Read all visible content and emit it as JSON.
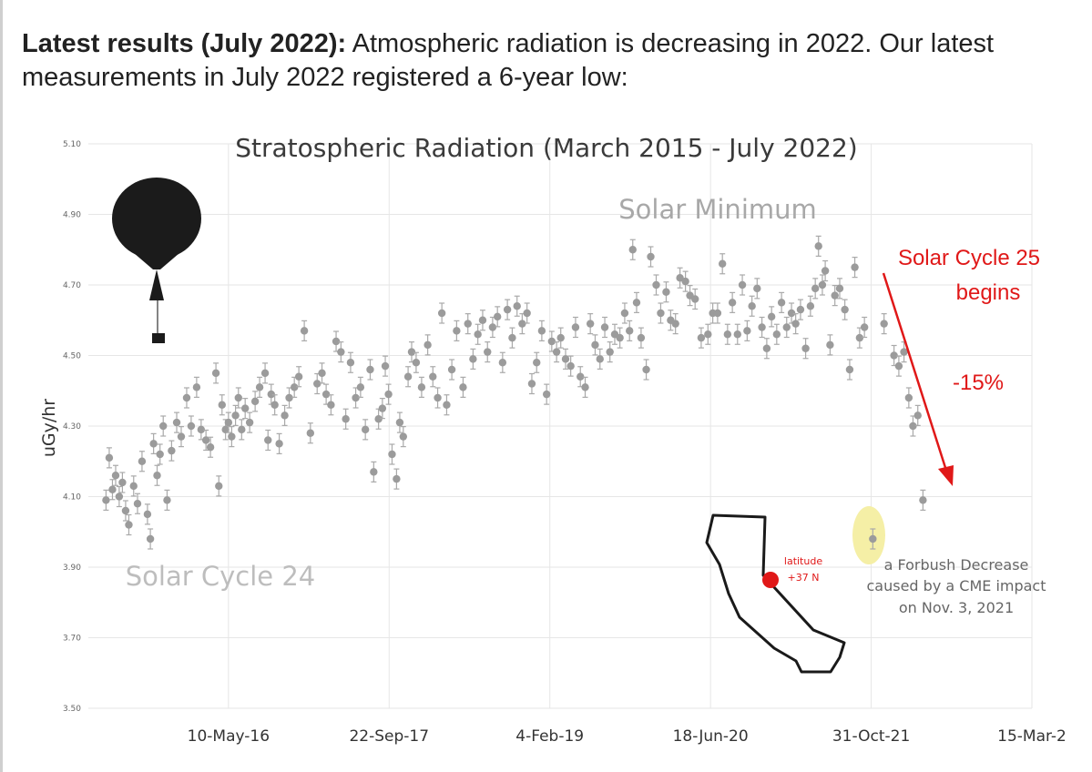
{
  "intro": {
    "bold": "Latest results (July 2022):",
    "text": " Atmospheric radiation is decreasing in 2022. Our latest measurements in July 2022 registered a 6-year low:"
  },
  "chart_data": {
    "type": "scatter",
    "title": "Stratospheric Radiation (March 2015 - July 2022)",
    "ylabel": "uGy/hr",
    "xlabel": "",
    "ylim": [
      3.5,
      5.1
    ],
    "yticks": [
      "5.10",
      "4.90",
      "4.70",
      "4.50",
      "4.30",
      "4.10",
      "3.90",
      "3.70",
      "3.50"
    ],
    "xlim": [
      "2015-03-01",
      "2023-03-15"
    ],
    "xticks": [
      {
        "label": "10-May-16",
        "date": "2016-05-10"
      },
      {
        "label": "22-Sep-17",
        "date": "2017-09-22"
      },
      {
        "label": "4-Feb-19",
        "date": "2019-02-04"
      },
      {
        "label": "18-Jun-20",
        "date": "2020-06-18"
      },
      {
        "label": "31-Oct-21",
        "date": "2021-10-31"
      },
      {
        "label": "15-Mar-2",
        "date": "2023-03-15"
      }
    ],
    "series": [
      {
        "name": "measurements",
        "points": [
          [
            "2015-04-25",
            4.09
          ],
          [
            "2015-05-05",
            4.21
          ],
          [
            "2015-05-15",
            4.12
          ],
          [
            "2015-05-25",
            4.16
          ],
          [
            "2015-06-05",
            4.1
          ],
          [
            "2015-06-15",
            4.14
          ],
          [
            "2015-06-25",
            4.06
          ],
          [
            "2015-07-05",
            4.02
          ],
          [
            "2015-07-20",
            4.13
          ],
          [
            "2015-08-01",
            4.08
          ],
          [
            "2015-08-15",
            4.2
          ],
          [
            "2015-09-01",
            4.05
          ],
          [
            "2015-09-10",
            3.98
          ],
          [
            "2015-09-20",
            4.25
          ],
          [
            "2015-10-01",
            4.16
          ],
          [
            "2015-10-10",
            4.22
          ],
          [
            "2015-10-20",
            4.3
          ],
          [
            "2015-11-01",
            4.09
          ],
          [
            "2015-11-15",
            4.23
          ],
          [
            "2015-12-01",
            4.31
          ],
          [
            "2015-12-15",
            4.27
          ],
          [
            "2016-01-01",
            4.38
          ],
          [
            "2016-01-15",
            4.3
          ],
          [
            "2016-02-01",
            4.41
          ],
          [
            "2016-02-15",
            4.29
          ],
          [
            "2016-03-01",
            4.26
          ],
          [
            "2016-03-15",
            4.24
          ],
          [
            "2016-04-01",
            4.45
          ],
          [
            "2016-04-10",
            4.13
          ],
          [
            "2016-04-20",
            4.36
          ],
          [
            "2016-05-01",
            4.29
          ],
          [
            "2016-05-10",
            4.31
          ],
          [
            "2016-05-20",
            4.27
          ],
          [
            "2016-06-01",
            4.33
          ],
          [
            "2016-06-10",
            4.38
          ],
          [
            "2016-06-20",
            4.29
          ],
          [
            "2016-07-01",
            4.35
          ],
          [
            "2016-07-15",
            4.31
          ],
          [
            "2016-08-01",
            4.37
          ],
          [
            "2016-08-15",
            4.41
          ],
          [
            "2016-09-01",
            4.45
          ],
          [
            "2016-09-10",
            4.26
          ],
          [
            "2016-09-20",
            4.39
          ],
          [
            "2016-10-01",
            4.36
          ],
          [
            "2016-10-15",
            4.25
          ],
          [
            "2016-11-01",
            4.33
          ],
          [
            "2016-11-15",
            4.38
          ],
          [
            "2016-12-01",
            4.41
          ],
          [
            "2016-12-15",
            4.44
          ],
          [
            "2017-01-01",
            4.57
          ],
          [
            "2017-01-20",
            4.28
          ],
          [
            "2017-02-10",
            4.42
          ],
          [
            "2017-02-25",
            4.45
          ],
          [
            "2017-03-10",
            4.39
          ],
          [
            "2017-03-25",
            4.36
          ],
          [
            "2017-04-10",
            4.54
          ],
          [
            "2017-04-25",
            4.51
          ],
          [
            "2017-05-10",
            4.32
          ],
          [
            "2017-05-25",
            4.48
          ],
          [
            "2017-06-10",
            4.38
          ],
          [
            "2017-06-25",
            4.41
          ],
          [
            "2017-07-10",
            4.29
          ],
          [
            "2017-07-25",
            4.46
          ],
          [
            "2017-08-05",
            4.17
          ],
          [
            "2017-08-20",
            4.32
          ],
          [
            "2017-09-01",
            4.35
          ],
          [
            "2017-09-10",
            4.47
          ],
          [
            "2017-09-20",
            4.39
          ],
          [
            "2017-10-01",
            4.22
          ],
          [
            "2017-10-15",
            4.15
          ],
          [
            "2017-10-25",
            4.31
          ],
          [
            "2017-11-05",
            4.27
          ],
          [
            "2017-11-20",
            4.44
          ],
          [
            "2017-12-01",
            4.51
          ],
          [
            "2017-12-15",
            4.48
          ],
          [
            "2018-01-01",
            4.41
          ],
          [
            "2018-01-20",
            4.53
          ],
          [
            "2018-02-05",
            4.44
          ],
          [
            "2018-02-20",
            4.38
          ],
          [
            "2018-03-05",
            4.62
          ],
          [
            "2018-03-20",
            4.36
          ],
          [
            "2018-04-05",
            4.46
          ],
          [
            "2018-04-20",
            4.57
          ],
          [
            "2018-05-10",
            4.41
          ],
          [
            "2018-05-25",
            4.59
          ],
          [
            "2018-06-10",
            4.49
          ],
          [
            "2018-06-25",
            4.56
          ],
          [
            "2018-07-10",
            4.6
          ],
          [
            "2018-07-25",
            4.51
          ],
          [
            "2018-08-10",
            4.58
          ],
          [
            "2018-08-25",
            4.61
          ],
          [
            "2018-09-10",
            4.48
          ],
          [
            "2018-09-25",
            4.63
          ],
          [
            "2018-10-10",
            4.55
          ],
          [
            "2018-10-25",
            4.64
          ],
          [
            "2018-11-10",
            4.59
          ],
          [
            "2018-11-25",
            4.62
          ],
          [
            "2018-12-10",
            4.42
          ],
          [
            "2018-12-25",
            4.48
          ],
          [
            "2019-01-10",
            4.57
          ],
          [
            "2019-01-25",
            4.39
          ],
          [
            "2019-02-10",
            4.54
          ],
          [
            "2019-02-25",
            4.51
          ],
          [
            "2019-03-10",
            4.55
          ],
          [
            "2019-03-25",
            4.49
          ],
          [
            "2019-04-10",
            4.47
          ],
          [
            "2019-04-25",
            4.58
          ],
          [
            "2019-05-10",
            4.44
          ],
          [
            "2019-05-25",
            4.41
          ],
          [
            "2019-06-10",
            4.59
          ],
          [
            "2019-06-25",
            4.53
          ],
          [
            "2019-07-10",
            4.49
          ],
          [
            "2019-07-25",
            4.58
          ],
          [
            "2019-08-10",
            4.51
          ],
          [
            "2019-08-25",
            4.56
          ],
          [
            "2019-09-10",
            4.55
          ],
          [
            "2019-09-25",
            4.62
          ],
          [
            "2019-10-10",
            4.57
          ],
          [
            "2019-10-20",
            4.8
          ],
          [
            "2019-11-01",
            4.65
          ],
          [
            "2019-11-15",
            4.55
          ],
          [
            "2019-12-01",
            4.46
          ],
          [
            "2019-12-15",
            4.78
          ],
          [
            "2020-01-01",
            4.7
          ],
          [
            "2020-01-15",
            4.62
          ],
          [
            "2020-02-01",
            4.68
          ],
          [
            "2020-02-15",
            4.6
          ],
          [
            "2020-03-01",
            4.59
          ],
          [
            "2020-03-15",
            4.72
          ],
          [
            "2020-04-01",
            4.71
          ],
          [
            "2020-04-15",
            4.67
          ],
          [
            "2020-05-01",
            4.66
          ],
          [
            "2020-05-20",
            4.55
          ],
          [
            "2020-06-10",
            4.56
          ],
          [
            "2020-06-25",
            4.62
          ],
          [
            "2020-07-10",
            4.62
          ],
          [
            "2020-07-25",
            4.76
          ],
          [
            "2020-08-10",
            4.56
          ],
          [
            "2020-08-25",
            4.65
          ],
          [
            "2020-09-10",
            4.56
          ],
          [
            "2020-09-25",
            4.7
          ],
          [
            "2020-10-10",
            4.57
          ],
          [
            "2020-10-25",
            4.64
          ],
          [
            "2020-11-10",
            4.69
          ],
          [
            "2020-11-25",
            4.58
          ],
          [
            "2020-12-10",
            4.52
          ],
          [
            "2020-12-25",
            4.61
          ],
          [
            "2021-01-10",
            4.56
          ],
          [
            "2021-01-25",
            4.65
          ],
          [
            "2021-02-10",
            4.58
          ],
          [
            "2021-02-25",
            4.62
          ],
          [
            "2021-03-10",
            4.59
          ],
          [
            "2021-03-25",
            4.63
          ],
          [
            "2021-04-10",
            4.52
          ],
          [
            "2021-04-25",
            4.64
          ],
          [
            "2021-05-10",
            4.69
          ],
          [
            "2021-05-20",
            4.81
          ],
          [
            "2021-06-01",
            4.7
          ],
          [
            "2021-06-10",
            4.74
          ],
          [
            "2021-06-25",
            4.53
          ],
          [
            "2021-07-10",
            4.67
          ],
          [
            "2021-07-25",
            4.69
          ],
          [
            "2021-08-10",
            4.63
          ],
          [
            "2021-08-25",
            4.46
          ],
          [
            "2021-09-10",
            4.75
          ],
          [
            "2021-09-25",
            4.55
          ],
          [
            "2021-10-10",
            4.58
          ],
          [
            "2021-11-05",
            3.98
          ],
          [
            "2021-12-10",
            4.59
          ],
          [
            "2022-01-10",
            4.5
          ],
          [
            "2022-01-25",
            4.47
          ],
          [
            "2022-02-10",
            4.51
          ],
          [
            "2022-02-25",
            4.38
          ],
          [
            "2022-03-10",
            4.3
          ],
          [
            "2022-03-25",
            4.33
          ],
          [
            "2022-04-10",
            4.09
          ]
        ]
      }
    ],
    "annotations": {
      "solar_minimum": "Solar Minimum",
      "solar_cycle_24": "Solar Cycle 24",
      "solar_cycle_25_line1": "Solar Cycle 25",
      "solar_cycle_25_line2": "begins",
      "percent_change": "-15%",
      "forbush_line1": "a Forbush Decrease",
      "forbush_line2": "caused by a CME impact",
      "forbush_line3": "on Nov. 3, 2021",
      "latitude_line1": "latitude",
      "latitude_line2": "+37 N"
    },
    "colors": {
      "points": "#9b9b9b",
      "grid": "#e6e6e6",
      "accent": "#e01818",
      "highlight": "#f5efa6"
    }
  }
}
